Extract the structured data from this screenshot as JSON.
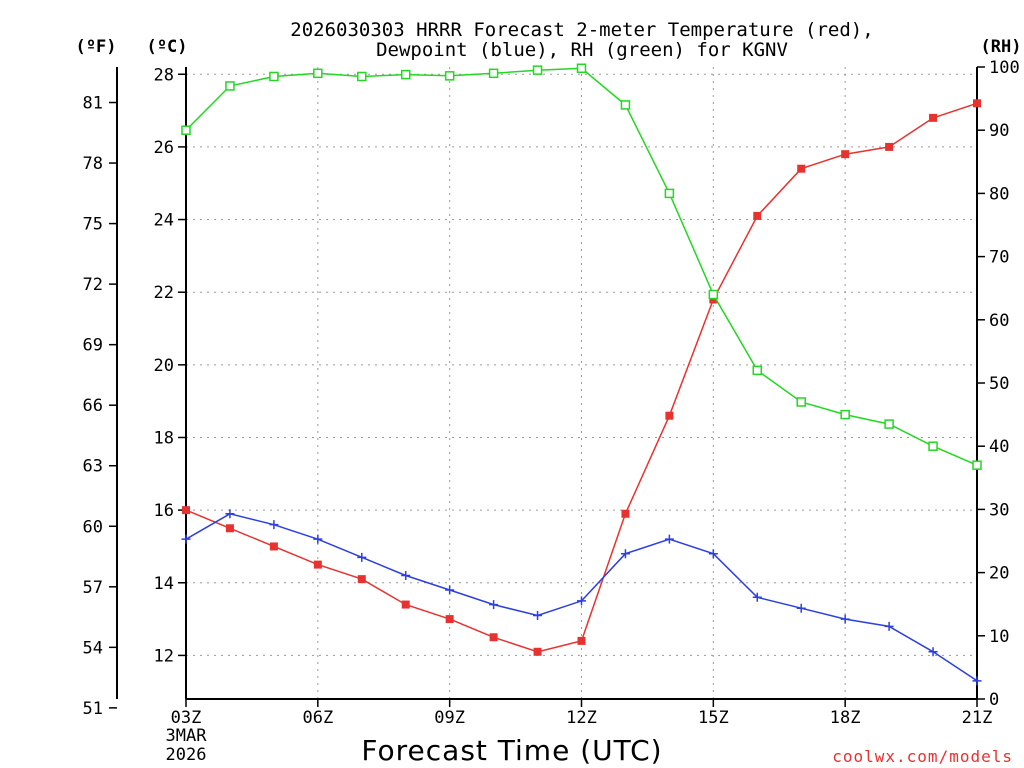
{
  "chart_data": {
    "type": "line",
    "title": "2026030303 HRRR Forecast 2-meter Temperature (red),",
    "subtitle": "Dewpoint (blue), RH (green) for KGNV",
    "xlabel": "Forecast Time (UTC)",
    "credit": "coolwx.com/models",
    "date_label": [
      "3MAR",
      "2026"
    ],
    "units": {
      "fahrenheit": "(ºF)",
      "celsius": "(ºC)",
      "rh": "(RH)"
    },
    "x": [
      3,
      4,
      5,
      6,
      7,
      8,
      9,
      10,
      11,
      12,
      13,
      14,
      15,
      16,
      17,
      18,
      19,
      20,
      21
    ],
    "x_ticks": [
      3,
      6,
      9,
      12,
      15,
      18,
      21
    ],
    "x_tick_labels": [
      "03Z",
      "06Z",
      "09Z",
      "12Z",
      "15Z",
      "18Z",
      "21Z"
    ],
    "xlim": [
      3,
      21
    ],
    "celsius_axis": {
      "ylim": [
        10.8,
        28.2
      ],
      "ticks": [
        12,
        14,
        16,
        18,
        20,
        22,
        24,
        26,
        28
      ]
    },
    "fahrenheit_axis": {
      "ticks": [
        51,
        54,
        57,
        60,
        63,
        66,
        69,
        72,
        75,
        78,
        81
      ]
    },
    "rh_axis": {
      "ylim": [
        0,
        100
      ],
      "ticks": [
        0,
        10,
        20,
        30,
        40,
        50,
        60,
        70,
        80,
        90,
        100
      ]
    },
    "series": [
      {
        "name": "Temperature",
        "axis": "celsius",
        "color": "#e8322f",
        "marker": "filled-square",
        "values": [
          16.0,
          15.5,
          15.0,
          14.5,
          14.1,
          13.4,
          13.0,
          12.5,
          12.1,
          12.4,
          15.9,
          18.6,
          21.8,
          24.1,
          25.4,
          25.8,
          26.0,
          26.8,
          27.2
        ]
      },
      {
        "name": "Dewpoint",
        "axis": "celsius",
        "color": "#2c3fe0",
        "marker": "plus",
        "values": [
          15.2,
          15.9,
          15.6,
          15.2,
          14.7,
          14.2,
          13.8,
          13.4,
          13.1,
          13.5,
          14.8,
          15.2,
          14.8,
          13.6,
          13.3,
          13.0,
          12.8,
          12.1,
          11.3
        ]
      },
      {
        "name": "RH",
        "axis": "rh",
        "color": "#22d822",
        "marker": "open-square",
        "values": [
          90,
          97,
          98.5,
          99,
          98.5,
          98.8,
          98.6,
          99,
          99.5,
          99.8,
          94,
          80,
          64,
          52,
          47,
          45,
          43.5,
          40,
          37
        ]
      }
    ]
  }
}
